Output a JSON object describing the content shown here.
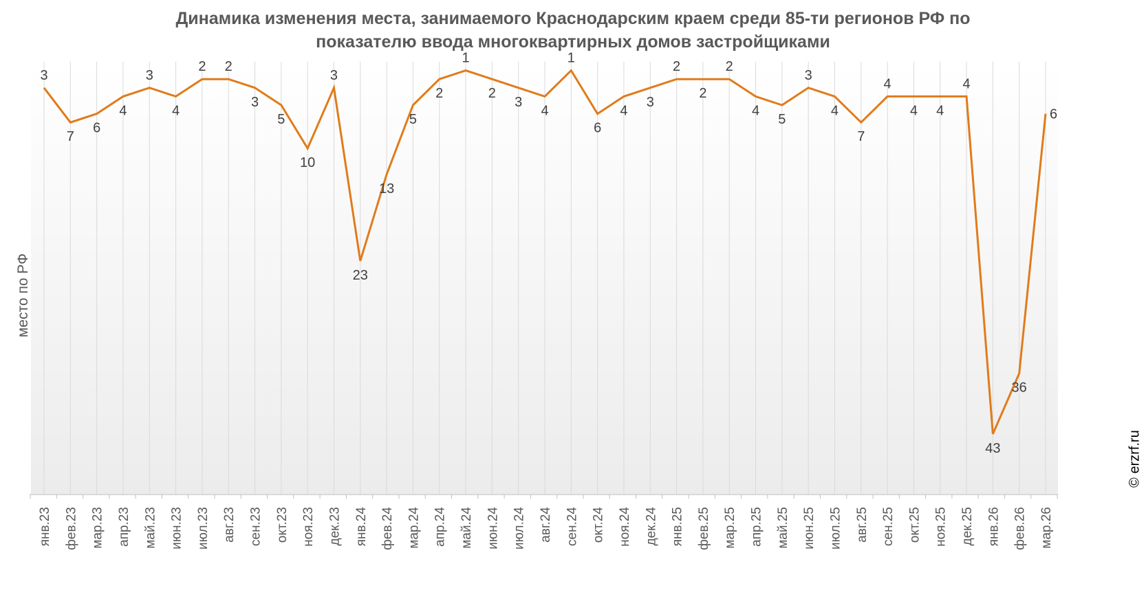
{
  "title_line1": "Динамика изменения места, занимаемого Краснодарским краем среди 85-ти регионов РФ по",
  "title_line2": "показателю ввода многоквартирных домов застройщиками",
  "watermark": "© erzrf.ru",
  "colors": {
    "line": "#E07B1A",
    "grid": "#d9d9d9",
    "text": "#595959",
    "plot_bg_top": "#ffffff",
    "plot_bg_bottom": "#ececec"
  },
  "chart_data": {
    "type": "line",
    "title": "Динамика изменения места, занимаемого Краснодарским краем среди 85-ти регионов РФ по показателю ввода многоквартирных домов застройщиками",
    "xlabel": "",
    "ylabel": "место по РФ",
    "y_reversed": true,
    "ylim": [
      0,
      50
    ],
    "grid": "vertical",
    "categories": [
      "янв.23",
      "фев.23",
      "мар.23",
      "апр.23",
      "май.23",
      "июн.23",
      "июл.23",
      "авг.23",
      "сен.23",
      "окт.23",
      "ноя.23",
      "дек.23",
      "янв.24",
      "фев.24",
      "мар.24",
      "апр.24",
      "май.24",
      "июн.24",
      "июл.24",
      "авг.24",
      "сен.24",
      "окт.24",
      "ноя.24",
      "дек.24",
      "янв.25",
      "фев.25",
      "мар.25",
      "апр.25",
      "май.25",
      "июн.25",
      "июл.25",
      "авг.25",
      "сен.25",
      "окт.25",
      "ноя.25",
      "дек.25",
      "янв.26",
      "фев.26",
      "мар.26"
    ],
    "series": [
      {
        "values": [
          3,
          7,
          6,
          4,
          3,
          4,
          2,
          2,
          3,
          5,
          10,
          3,
          23,
          13,
          5,
          2,
          1,
          2,
          3,
          4,
          1,
          6,
          4,
          3,
          2,
          2,
          2,
          4,
          5,
          3,
          4,
          7,
          4,
          4,
          4,
          4,
          43,
          36,
          6
        ]
      }
    ]
  }
}
